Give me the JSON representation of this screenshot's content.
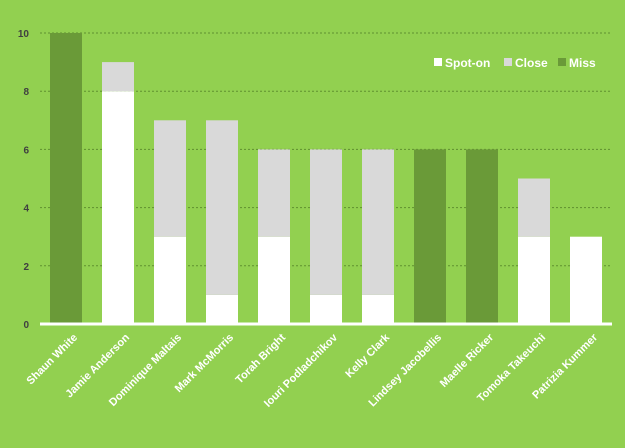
{
  "chart_data": {
    "type": "bar",
    "stacked": true,
    "title": "",
    "xlabel": "",
    "ylabel": "",
    "ylim": [
      0,
      10
    ],
    "yticks": [
      "0",
      "2",
      "4",
      "6",
      "8",
      "10"
    ],
    "grid": true,
    "legend_position": "top-right",
    "categories": [
      "Shaun White",
      "Jamie Anderson",
      "Dominique Maltais",
      "Mark McMorris",
      "Torah Bright",
      "Iouri Podladchikov",
      "Kelly Clark",
      "Lindsey Jacobellis",
      "Maelle Ricker",
      "Tomoka Takeuchi",
      "Patrizia Kummer"
    ],
    "series": [
      {
        "name": "Spot-on",
        "color": "#ffffff",
        "values": [
          0,
          8,
          3,
          1,
          3,
          1,
          1,
          0,
          0,
          3,
          3
        ]
      },
      {
        "name": "Close",
        "color": "#d9d9d9",
        "values": [
          0,
          1,
          4,
          6,
          3,
          5,
          5,
          0,
          0,
          2,
          0
        ]
      },
      {
        "name": "Miss",
        "color": "#6a9a38",
        "values": [
          10,
          0,
          0,
          0,
          0,
          0,
          0,
          6,
          6,
          0,
          0
        ]
      }
    ]
  }
}
